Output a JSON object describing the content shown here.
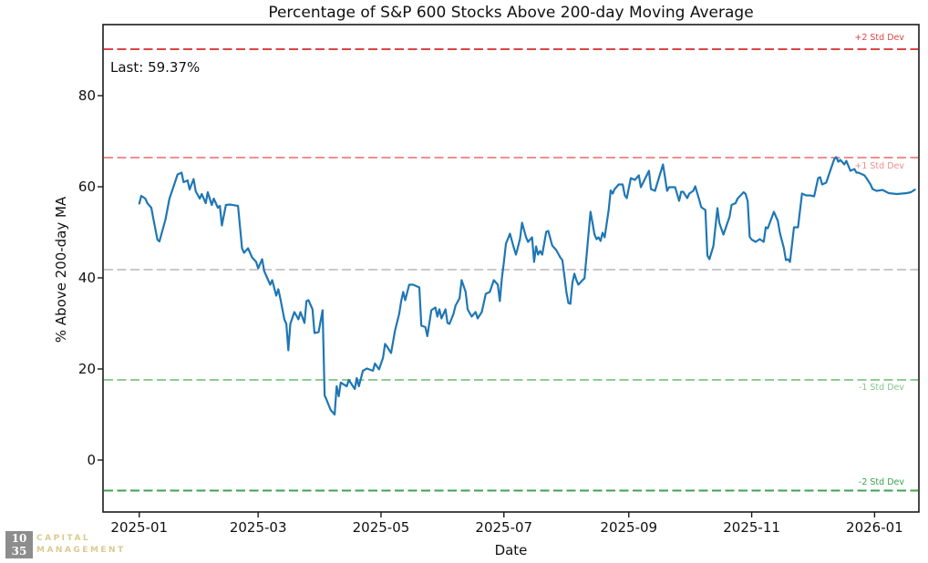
{
  "chart_data": {
    "type": "line",
    "title": "Percentage of S&P 600 Stocks Above 200-day Moving Average",
    "xlabel": "Date",
    "ylabel": "% Above 200-day MA",
    "annotation": "Last: 59.37%",
    "grid": false,
    "x_axis_unit": "days since 2025-01-01",
    "x_ticks": [
      {
        "label": "2025-01",
        "day": 0
      },
      {
        "label": "2025-03",
        "day": 59
      },
      {
        "label": "2025-05",
        "day": 120
      },
      {
        "label": "2025-07",
        "day": 181
      },
      {
        "label": "2025-09",
        "day": 243
      },
      {
        "label": "2025-11",
        "day": 304
      },
      {
        "label": "2026-01",
        "day": 365
      }
    ],
    "y_ticks": [
      0,
      20,
      40,
      60,
      80
    ],
    "xlim_days": [
      -18,
      387
    ],
    "ylim": [
      -11.4,
      95.6
    ],
    "reference_lines": [
      {
        "label": "+2 Std Dev",
        "value": 90.2,
        "color": "#d94646",
        "label_position": "above"
      },
      {
        "label": "+1 Std Dev",
        "value": 66.4,
        "color": "#f09090",
        "label_position": "below"
      },
      {
        "label": "",
        "value": 41.8,
        "color": "#c9c9c9",
        "label_position": "none"
      },
      {
        "label": "-1 Std Dev",
        "value": 17.6,
        "color": "#8ecb94",
        "label_position": "below"
      },
      {
        "label": "-2 Std Dev",
        "value": -6.7,
        "color": "#3fa251",
        "label_position": "above"
      }
    ],
    "series": [
      {
        "name": "% Above 200-day MA",
        "color": "#1f77b4",
        "last_value": 59.37,
        "points": [
          [
            0,
            56.3
          ],
          [
            1,
            58
          ],
          [
            3,
            57.4
          ],
          [
            4,
            56.4
          ],
          [
            6,
            55.4
          ],
          [
            7,
            53
          ],
          [
            9,
            48.4
          ],
          [
            10,
            48
          ],
          [
            13,
            52.8
          ],
          [
            15,
            57.4
          ],
          [
            17,
            60
          ],
          [
            19,
            62.7
          ],
          [
            21,
            63.1
          ],
          [
            22,
            61
          ],
          [
            24,
            61.4
          ],
          [
            25,
            59.4
          ],
          [
            27,
            61.7
          ],
          [
            28,
            59
          ],
          [
            30,
            57.4
          ],
          [
            31,
            58.4
          ],
          [
            33,
            56.4
          ],
          [
            34,
            58.8
          ],
          [
            36,
            56
          ],
          [
            37,
            57.4
          ],
          [
            39,
            55.4
          ],
          [
            40,
            55.8
          ],
          [
            41,
            51.5
          ],
          [
            43,
            56
          ],
          [
            45,
            56.1
          ],
          [
            49,
            55.8
          ],
          [
            51,
            46.5
          ],
          [
            52,
            45.5
          ],
          [
            54,
            46.5
          ],
          [
            56,
            44.5
          ],
          [
            58,
            43.5
          ],
          [
            59,
            42.1
          ],
          [
            61,
            44.1
          ],
          [
            62,
            41.5
          ],
          [
            63,
            40.5
          ],
          [
            65,
            38.5
          ],
          [
            66,
            39.5
          ],
          [
            68,
            36.1
          ],
          [
            69,
            37.5
          ],
          [
            70,
            35.5
          ],
          [
            72,
            30.9
          ],
          [
            73,
            29.9
          ],
          [
            74,
            24.1
          ],
          [
            75,
            29.9
          ],
          [
            77,
            32.5
          ],
          [
            79,
            30.9
          ],
          [
            80,
            32.5
          ],
          [
            82,
            30.1
          ],
          [
            83,
            34.9
          ],
          [
            84,
            35.1
          ],
          [
            86,
            33.1
          ],
          [
            87,
            27.9
          ],
          [
            89,
            28.1
          ],
          [
            91,
            32.9
          ],
          [
            92,
            14.2
          ],
          [
            93,
            13.2
          ],
          [
            95,
            11
          ],
          [
            97,
            10
          ],
          [
            98,
            16.2
          ],
          [
            99,
            14
          ],
          [
            100,
            17
          ],
          [
            103,
            16.2
          ],
          [
            104,
            17.6
          ],
          [
            107,
            15.6
          ],
          [
            108,
            18
          ],
          [
            109,
            16.2
          ],
          [
            111,
            19.6
          ],
          [
            113,
            20.1
          ],
          [
            116,
            19.6
          ],
          [
            117,
            21.2
          ],
          [
            119,
            19.9
          ],
          [
            121,
            22.5
          ],
          [
            122,
            25.5
          ],
          [
            123,
            24.9
          ],
          [
            125,
            23.5
          ],
          [
            127,
            28.5
          ],
          [
            129,
            32.1
          ],
          [
            130,
            34.9
          ],
          [
            131,
            36.9
          ],
          [
            132,
            35.1
          ],
          [
            134,
            38.5
          ],
          [
            136,
            38.5
          ],
          [
            138,
            38.1
          ],
          [
            139,
            37.9
          ],
          [
            140,
            29.5
          ],
          [
            142,
            29.2
          ],
          [
            143,
            27.2
          ],
          [
            145,
            32.9
          ],
          [
            147,
            33.5
          ],
          [
            148,
            31.5
          ],
          [
            149,
            33.1
          ],
          [
            150,
            31.1
          ],
          [
            152,
            33.1
          ],
          [
            153,
            30.1
          ],
          [
            154,
            29.9
          ],
          [
            156,
            32.1
          ],
          [
            157,
            33.9
          ],
          [
            159,
            35.5
          ],
          [
            160,
            39.5
          ],
          [
            162,
            36.9
          ],
          [
            163,
            33.1
          ],
          [
            165,
            31.5
          ],
          [
            167,
            32.5
          ],
          [
            168,
            31.1
          ],
          [
            170,
            32.5
          ],
          [
            172,
            36.5
          ],
          [
            174,
            36.9
          ],
          [
            176,
            39.5
          ],
          [
            178,
            38.5
          ],
          [
            179,
            34.9
          ],
          [
            180,
            40
          ],
          [
            181,
            43.5
          ],
          [
            182,
            47.5
          ],
          [
            184,
            49.7
          ],
          [
            186,
            46.5
          ],
          [
            187,
            45.1
          ],
          [
            189,
            48.5
          ],
          [
            190,
            52.1
          ],
          [
            192,
            48.9
          ],
          [
            193,
            47.9
          ],
          [
            195,
            48.9
          ],
          [
            196,
            43.5
          ],
          [
            197,
            46.9
          ],
          [
            198,
            45.1
          ],
          [
            199,
            45.9
          ],
          [
            200,
            45.1
          ],
          [
            202,
            50.1
          ],
          [
            203,
            50.3
          ],
          [
            205,
            47.1
          ],
          [
            207,
            46.1
          ],
          [
            209,
            44.5
          ],
          [
            210,
            43.9
          ],
          [
            211,
            40.5
          ],
          [
            212,
            36.9
          ],
          [
            213,
            34.5
          ],
          [
            214,
            34.3
          ],
          [
            215,
            38.9
          ],
          [
            216,
            40.9
          ],
          [
            217,
            39.5
          ],
          [
            218,
            38.5
          ],
          [
            220,
            39.5
          ],
          [
            221,
            39.9
          ],
          [
            224,
            54.5
          ],
          [
            226,
            49.5
          ],
          [
            227,
            48.5
          ],
          [
            228,
            48.9
          ],
          [
            229,
            48.1
          ],
          [
            230,
            49.9
          ],
          [
            231,
            48.9
          ],
          [
            233,
            54.9
          ],
          [
            234,
            59.2
          ],
          [
            235,
            58.5
          ],
          [
            236,
            59.5
          ],
          [
            238,
            60.5
          ],
          [
            240,
            60.5
          ],
          [
            241,
            58.1
          ],
          [
            242,
            57.5
          ],
          [
            244,
            61.9
          ],
          [
            246,
            61.5
          ],
          [
            248,
            62.5
          ],
          [
            249,
            59.9
          ],
          [
            253,
            63.5
          ],
          [
            254,
            59.5
          ],
          [
            256,
            59.1
          ],
          [
            260,
            64.9
          ],
          [
            262,
            59.1
          ],
          [
            263,
            59.9
          ],
          [
            266,
            59.9
          ],
          [
            268,
            56.9
          ],
          [
            269,
            58.9
          ],
          [
            270,
            58.9
          ],
          [
            272,
            57.5
          ],
          [
            273,
            58.5
          ],
          [
            275,
            59.1
          ],
          [
            276,
            60.1
          ],
          [
            278,
            57.1
          ],
          [
            279,
            55.5
          ],
          [
            281,
            54.9
          ],
          [
            282,
            44.9
          ],
          [
            283,
            44.1
          ],
          [
            285,
            47
          ],
          [
            287,
            55.3
          ],
          [
            288,
            52
          ],
          [
            290,
            49.5
          ],
          [
            293,
            53.4
          ],
          [
            294,
            56
          ],
          [
            296,
            56.4
          ],
          [
            297,
            57.4
          ],
          [
            300,
            58.8
          ],
          [
            301,
            58.4
          ],
          [
            302,
            56.8
          ],
          [
            303,
            49
          ],
          [
            304,
            48.4
          ],
          [
            306,
            47.9
          ],
          [
            308,
            48.5
          ],
          [
            310,
            47.9
          ],
          [
            311,
            51.1
          ],
          [
            312,
            50.9
          ],
          [
            315,
            54.5
          ],
          [
            317,
            52.5
          ],
          [
            318,
            49.9
          ],
          [
            320,
            46.5
          ],
          [
            321,
            43.9
          ],
          [
            322,
            44.1
          ],
          [
            323,
            43.5
          ],
          [
            325,
            51.1
          ],
          [
            327,
            51.1
          ],
          [
            329,
            58.5
          ],
          [
            331,
            58.1
          ],
          [
            333,
            58.1
          ],
          [
            335,
            57.9
          ],
          [
            337,
            61.9
          ],
          [
            338,
            62.1
          ],
          [
            339,
            60.5
          ],
          [
            341,
            60.9
          ],
          [
            345,
            66.1
          ],
          [
            346,
            66.5
          ],
          [
            347,
            65.5
          ],
          [
            348,
            65.9
          ],
          [
            350,
            64.9
          ],
          [
            351,
            65.7
          ],
          [
            353,
            63.5
          ],
          [
            355,
            63.9
          ],
          [
            356,
            63.1
          ],
          [
            357,
            63.1
          ],
          [
            360,
            62.5
          ],
          [
            361,
            61.9
          ],
          [
            363,
            60.5
          ],
          [
            364,
            59.5
          ],
          [
            366,
            59.1
          ],
          [
            369,
            59.3
          ],
          [
            372,
            58.6
          ],
          [
            376,
            58.4
          ],
          [
            381,
            58.6
          ],
          [
            383,
            58.8
          ],
          [
            385,
            59.37
          ]
        ]
      }
    ]
  },
  "logo": {
    "box_line1": "10",
    "box_line2": "35",
    "line1": "CAPITAL",
    "line2": "MANAGEMENT",
    "box_color": "#8d8d8d",
    "text_color": "#dbca8e"
  },
  "style_colors": {
    "series_blue": "#1f77b4",
    "frame": "#1a1a1a",
    "background": "#ffffff"
  }
}
